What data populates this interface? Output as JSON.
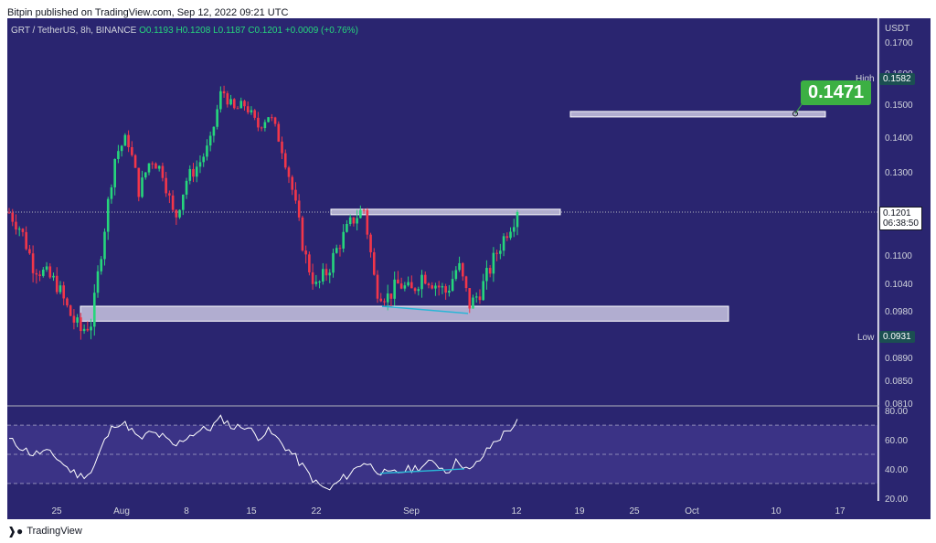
{
  "header": {
    "published_line": "Bitpin published on TradingView.com, Sep 12, 2022 09:21 UTC"
  },
  "legend": {
    "symbol_line": "GRT / TetherUS, 8h, BINANCE",
    "open": "O0.1193",
    "high": "H0.1208",
    "low": "L0.1187",
    "close": "C0.1201",
    "change": "+0.0009 (+0.76%)"
  },
  "tags": {
    "high_label": "High",
    "high_value": "0.1582",
    "low_label": "Low",
    "low_value": "0.0931",
    "price_value": "0.1201",
    "countdown": "06:38:50",
    "target_callout": "0.1471"
  },
  "footer": {
    "brand": "TradingView"
  },
  "colors": {
    "background": "#2a2570",
    "up": "#26d67c",
    "down": "#f2364a",
    "zone_fill": "#c9c6e0",
    "diverge_line": "#29b6d6",
    "rsi_band": "#3b3386"
  },
  "chart_data": [
    {
      "type": "candlestick",
      "symbol": "GRT / TetherUS",
      "interval": "8h",
      "exchange": "BINANCE",
      "y_unit": "USDT",
      "ylim": [
        0.081,
        0.175
      ],
      "y_ticks": [
        "0.1700",
        "0.1600",
        "0.1500",
        "0.1400",
        "0.1300",
        "0.1100",
        "0.1040",
        "0.0980",
        "0.0890",
        "0.0850",
        "0.0810"
      ],
      "x_ticks": [
        "25",
        "Aug",
        "8",
        "15",
        "22",
        "Sep",
        "12",
        "19",
        "25",
        "Oct",
        "10",
        "17"
      ],
      "close_path": [
        0.12,
        0.116,
        0.108,
        0.106,
        0.104,
        0.098,
        0.094,
        0.096,
        0.115,
        0.135,
        0.14,
        0.125,
        0.134,
        0.13,
        0.118,
        0.128,
        0.132,
        0.138,
        0.155,
        0.148,
        0.15,
        0.143,
        0.147,
        0.138,
        0.125,
        0.11,
        0.103,
        0.107,
        0.113,
        0.118,
        0.121,
        0.103,
        0.101,
        0.104,
        0.102,
        0.106,
        0.104,
        0.102,
        0.108,
        0.099,
        0.103,
        0.109,
        0.115,
        0.12
      ],
      "high": 0.1582,
      "low": 0.0931,
      "last_price": 0.1201,
      "zones": [
        {
          "from": 0.096,
          "to": 0.099
        },
        {
          "from": 0.1198,
          "to": 0.1208
        },
        {
          "from": 0.1462,
          "to": 0.1478
        }
      ],
      "target": 0.1471
    },
    {
      "type": "line",
      "indicator": "RSI",
      "ylim": [
        18,
        82
      ],
      "y_ticks": [
        "80.00",
        "60.00",
        "40.00",
        "20.00"
      ],
      "bands": [
        30,
        50,
        70
      ],
      "values": [
        60,
        55,
        50,
        52,
        48,
        40,
        35,
        38,
        58,
        72,
        70,
        60,
        65,
        62,
        55,
        62,
        66,
        68,
        75,
        68,
        70,
        62,
        66,
        58,
        50,
        40,
        30,
        25,
        32,
        38,
        45,
        40,
        36,
        38,
        40,
        42,
        45,
        38,
        46,
        38,
        48,
        58,
        65,
        72
      ]
    }
  ]
}
